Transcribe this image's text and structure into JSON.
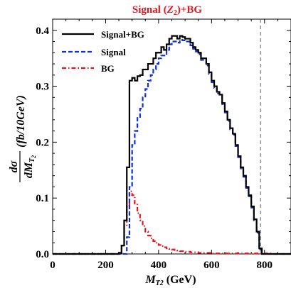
{
  "chart_data": {
    "type": "line",
    "title": {
      "pre": "Signal (",
      "z": "Z",
      "zsub": "2",
      "post": ")+BG"
    },
    "title_color": "#e8141c",
    "xlabel": {
      "m": "M",
      "sub": "T2",
      "unit": " (GeV)"
    },
    "ylabel": {
      "num": "dσ",
      "den_pre": "dM",
      "den_sub": "T",
      "den_subsub": "2",
      "unit": "(fb/10GeV)"
    },
    "xlim": [
      0,
      900
    ],
    "ylim": [
      0,
      0.42
    ],
    "x_ticks": [
      0,
      200,
      400,
      600,
      800
    ],
    "y_ticks": [
      0.0,
      0.1,
      0.2,
      0.3,
      0.4
    ],
    "x_tick_labels": [
      "0",
      "200",
      "400",
      "600",
      "800"
    ],
    "y_tick_labels": [
      "0.0",
      "0.1",
      "0.2",
      "0.3",
      "0.4"
    ],
    "vline": {
      "x": 785,
      "color": "#777777",
      "style": "dashed"
    },
    "legend_position": "top-left",
    "series": [
      {
        "name": "Signal+BG",
        "color": "#000000",
        "style": "solid",
        "bins": [
          [
            0,
            0.0
          ],
          [
            10,
            0.0
          ],
          [
            20,
            0.0
          ],
          [
            30,
            0.0
          ],
          [
            40,
            0.0
          ],
          [
            50,
            0.0
          ],
          [
            60,
            0.0
          ],
          [
            70,
            0.0
          ],
          [
            80,
            0.0
          ],
          [
            90,
            0.0
          ],
          [
            100,
            0.0
          ],
          [
            110,
            0.0
          ],
          [
            120,
            0.0
          ],
          [
            130,
            0.0
          ],
          [
            140,
            0.0
          ],
          [
            150,
            0.0
          ],
          [
            160,
            0.0
          ],
          [
            170,
            0.0
          ],
          [
            180,
            0.0
          ],
          [
            190,
            0.0
          ],
          [
            200,
            0.0
          ],
          [
            210,
            0.0
          ],
          [
            220,
            0.0
          ],
          [
            230,
            0.0
          ],
          [
            240,
            0.0
          ],
          [
            250,
            0.002
          ],
          [
            260,
            0.015
          ],
          [
            270,
            0.06
          ],
          [
            280,
            0.155
          ],
          [
            290,
            0.31
          ],
          [
            300,
            0.315
          ],
          [
            310,
            0.31
          ],
          [
            320,
            0.318
          ],
          [
            330,
            0.32
          ],
          [
            340,
            0.33
          ],
          [
            350,
            0.33
          ],
          [
            360,
            0.34
          ],
          [
            370,
            0.34
          ],
          [
            380,
            0.35
          ],
          [
            390,
            0.36
          ],
          [
            400,
            0.36
          ],
          [
            410,
            0.37
          ],
          [
            420,
            0.365
          ],
          [
            430,
            0.375
          ],
          [
            440,
            0.385
          ],
          [
            450,
            0.39
          ],
          [
            460,
            0.39
          ],
          [
            470,
            0.385
          ],
          [
            480,
            0.39
          ],
          [
            490,
            0.388
          ],
          [
            500,
            0.385
          ],
          [
            510,
            0.385
          ],
          [
            520,
            0.378
          ],
          [
            530,
            0.37
          ],
          [
            540,
            0.365
          ],
          [
            550,
            0.36
          ],
          [
            560,
            0.35
          ],
          [
            570,
            0.35
          ],
          [
            580,
            0.34
          ],
          [
            590,
            0.325
          ],
          [
            600,
            0.31
          ],
          [
            610,
            0.3
          ],
          [
            620,
            0.29
          ],
          [
            630,
            0.285
          ],
          [
            640,
            0.27
          ],
          [
            650,
            0.255
          ],
          [
            660,
            0.24
          ],
          [
            670,
            0.225
          ],
          [
            680,
            0.215
          ],
          [
            690,
            0.195
          ],
          [
            700,
            0.175
          ],
          [
            710,
            0.155
          ],
          [
            720,
            0.14
          ],
          [
            730,
            0.12
          ],
          [
            740,
            0.105
          ],
          [
            750,
            0.085
          ],
          [
            760,
            0.062
          ],
          [
            770,
            0.04
          ],
          [
            780,
            0.01
          ],
          [
            790,
            0.0
          ],
          [
            800,
            0.0
          ],
          [
            810,
            0.0
          ],
          [
            820,
            0.0
          ],
          [
            830,
            0.0
          ],
          [
            840,
            0.0
          ],
          [
            850,
            0.0
          ],
          [
            860,
            0.0
          ],
          [
            870,
            0.0
          ],
          [
            880,
            0.0
          ],
          [
            890,
            0.0
          ]
        ]
      },
      {
        "name": "Signal",
        "color": "#1030d8",
        "style": "dashed",
        "bins": [
          [
            0,
            0.0
          ],
          [
            10,
            0.0
          ],
          [
            20,
            0.0
          ],
          [
            30,
            0.0
          ],
          [
            40,
            0.0
          ],
          [
            50,
            0.0
          ],
          [
            60,
            0.0
          ],
          [
            70,
            0.0
          ],
          [
            80,
            0.0
          ],
          [
            90,
            0.0
          ],
          [
            100,
            0.0
          ],
          [
            110,
            0.0
          ],
          [
            120,
            0.0
          ],
          [
            130,
            0.0
          ],
          [
            140,
            0.0
          ],
          [
            150,
            0.0
          ],
          [
            160,
            0.0
          ],
          [
            170,
            0.0
          ],
          [
            180,
            0.0
          ],
          [
            190,
            0.0
          ],
          [
            200,
            0.0
          ],
          [
            210,
            0.0
          ],
          [
            220,
            0.0
          ],
          [
            230,
            0.0
          ],
          [
            240,
            0.0
          ],
          [
            250,
            0.0
          ],
          [
            260,
            0.0
          ],
          [
            270,
            0.0
          ],
          [
            280,
            0.03
          ],
          [
            290,
            0.12
          ],
          [
            300,
            0.195
          ],
          [
            310,
            0.22
          ],
          [
            320,
            0.245
          ],
          [
            330,
            0.26
          ],
          [
            340,
            0.28
          ],
          [
            350,
            0.295
          ],
          [
            360,
            0.31
          ],
          [
            370,
            0.32
          ],
          [
            380,
            0.33
          ],
          [
            390,
            0.34
          ],
          [
            400,
            0.35
          ],
          [
            410,
            0.355
          ],
          [
            420,
            0.355
          ],
          [
            430,
            0.365
          ],
          [
            440,
            0.375
          ],
          [
            450,
            0.38
          ],
          [
            460,
            0.38
          ],
          [
            470,
            0.378
          ],
          [
            480,
            0.383
          ],
          [
            490,
            0.382
          ],
          [
            500,
            0.38
          ],
          [
            510,
            0.38
          ],
          [
            520,
            0.373
          ],
          [
            530,
            0.367
          ],
          [
            540,
            0.362
          ],
          [
            550,
            0.357
          ],
          [
            560,
            0.347
          ],
          [
            570,
            0.347
          ],
          [
            580,
            0.337
          ],
          [
            590,
            0.322
          ],
          [
            600,
            0.307
          ],
          [
            610,
            0.297
          ],
          [
            620,
            0.287
          ],
          [
            630,
            0.283
          ],
          [
            640,
            0.268
          ],
          [
            650,
            0.253
          ],
          [
            660,
            0.238
          ],
          [
            670,
            0.223
          ],
          [
            680,
            0.213
          ],
          [
            690,
            0.193
          ],
          [
            700,
            0.173
          ],
          [
            710,
            0.153
          ],
          [
            720,
            0.138
          ],
          [
            730,
            0.118
          ],
          [
            740,
            0.103
          ],
          [
            750,
            0.083
          ],
          [
            760,
            0.06
          ],
          [
            770,
            0.038
          ],
          [
            780,
            0.008
          ],
          [
            790,
            0.0
          ],
          [
            800,
            0.0
          ],
          [
            810,
            0.0
          ],
          [
            820,
            0.0
          ],
          [
            830,
            0.0
          ],
          [
            840,
            0.0
          ],
          [
            850,
            0.0
          ],
          [
            860,
            0.0
          ],
          [
            870,
            0.0
          ],
          [
            880,
            0.0
          ],
          [
            890,
            0.0
          ]
        ]
      },
      {
        "name": "BG",
        "color": "#e8141c",
        "style": "dashdot",
        "bins": [
          [
            0,
            0.0
          ],
          [
            10,
            0.0
          ],
          [
            20,
            0.0
          ],
          [
            30,
            0.0
          ],
          [
            40,
            0.0
          ],
          [
            50,
            0.0
          ],
          [
            60,
            0.0
          ],
          [
            70,
            0.0
          ],
          [
            80,
            0.0
          ],
          [
            90,
            0.0
          ],
          [
            100,
            0.0
          ],
          [
            110,
            0.0
          ],
          [
            120,
            0.0
          ],
          [
            130,
            0.0
          ],
          [
            140,
            0.0
          ],
          [
            150,
            0.0
          ],
          [
            160,
            0.0
          ],
          [
            170,
            0.0
          ],
          [
            180,
            0.0
          ],
          [
            190,
            0.0
          ],
          [
            200,
            0.0
          ],
          [
            210,
            0.0
          ],
          [
            220,
            0.0
          ],
          [
            230,
            0.0
          ],
          [
            240,
            0.0
          ],
          [
            250,
            0.002
          ],
          [
            260,
            0.015
          ],
          [
            270,
            0.05
          ],
          [
            280,
            0.085
          ],
          [
            290,
            0.112
          ],
          [
            300,
            0.105
          ],
          [
            310,
            0.09
          ],
          [
            320,
            0.073
          ],
          [
            330,
            0.06
          ],
          [
            340,
            0.05
          ],
          [
            350,
            0.04
          ],
          [
            360,
            0.033
          ],
          [
            370,
            0.028
          ],
          [
            380,
            0.023
          ],
          [
            390,
            0.02
          ],
          [
            400,
            0.016
          ],
          [
            410,
            0.014
          ],
          [
            420,
            0.012
          ],
          [
            430,
            0.01
          ],
          [
            440,
            0.009
          ],
          [
            450,
            0.008
          ],
          [
            460,
            0.007
          ],
          [
            470,
            0.006
          ],
          [
            480,
            0.005
          ],
          [
            490,
            0.005
          ],
          [
            500,
            0.004
          ],
          [
            510,
            0.004
          ],
          [
            520,
            0.003
          ],
          [
            530,
            0.003
          ],
          [
            540,
            0.003
          ],
          [
            550,
            0.002
          ],
          [
            560,
            0.002
          ],
          [
            570,
            0.002
          ],
          [
            580,
            0.002
          ],
          [
            590,
            0.002
          ],
          [
            600,
            0.001
          ],
          [
            610,
            0.001
          ],
          [
            620,
            0.001
          ],
          [
            630,
            0.001
          ],
          [
            640,
            0.001
          ],
          [
            650,
            0.001
          ],
          [
            660,
            0.001
          ],
          [
            670,
            0.001
          ],
          [
            680,
            0.001
          ],
          [
            690,
            0.001
          ],
          [
            700,
            0.001
          ],
          [
            710,
            0.001
          ],
          [
            720,
            0.001
          ],
          [
            730,
            0.001
          ],
          [
            740,
            0.001
          ],
          [
            750,
            0.001
          ],
          [
            760,
            0.001
          ],
          [
            770,
            0.001
          ],
          [
            780,
            0.001
          ],
          [
            790,
            0.001
          ],
          [
            800,
            0.001
          ],
          [
            810,
            0.001
          ],
          [
            820,
            0.001
          ],
          [
            830,
            0.0
          ],
          [
            840,
            0.0
          ],
          [
            850,
            0.0
          ],
          [
            860,
            0.0
          ],
          [
            870,
            0.0
          ],
          [
            880,
            0.0
          ],
          [
            890,
            0.0
          ]
        ]
      }
    ]
  }
}
